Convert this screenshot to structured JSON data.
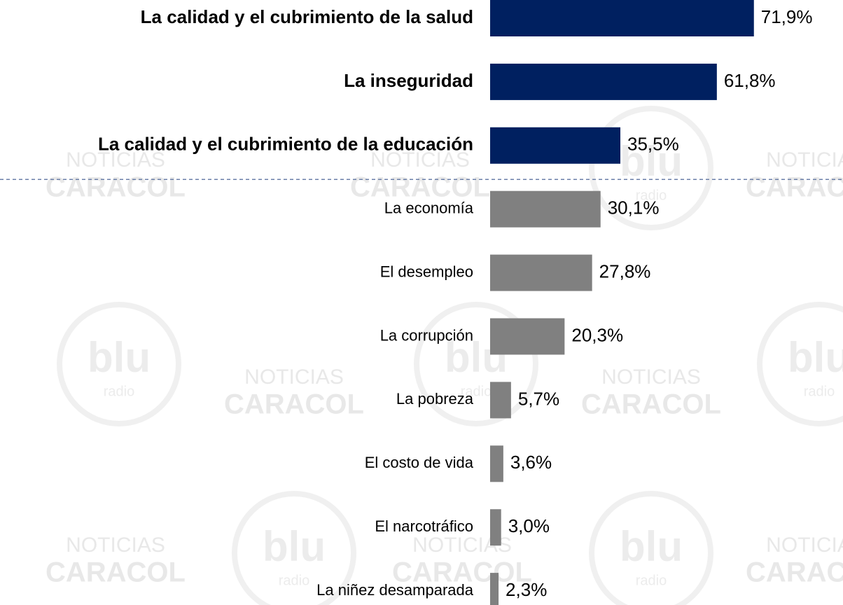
{
  "chart_data": {
    "type": "hbar",
    "categories": [
      "La calidad y el cubrimiento de la salud",
      "La inseguridad",
      "La calidad y el cubrimiento de la educación",
      "La economía",
      "El desempleo",
      "La corrupción",
      "La pobreza",
      "El costo de vida",
      "El narcotráfico",
      "La niñez desamparada"
    ],
    "values": [
      71.9,
      61.8,
      35.5,
      30.1,
      27.8,
      20.3,
      5.7,
      3.6,
      3.0,
      2.3
    ],
    "value_labels": [
      "71,9%",
      "61,8%",
      "35,5%",
      "30,1%",
      "27,8%",
      "20,3%",
      "5,7%",
      "3,6%",
      "3,0%",
      "2,3%"
    ],
    "colors": [
      "#002060",
      "#002060",
      "#002060",
      "#808080",
      "#808080",
      "#808080",
      "#808080",
      "#808080",
      "#808080",
      "#808080"
    ],
    "xlim": [
      0,
      100
    ],
    "watermarks": [
      "NOTICIAS",
      "CARACOL",
      "blu",
      "radio"
    ]
  }
}
